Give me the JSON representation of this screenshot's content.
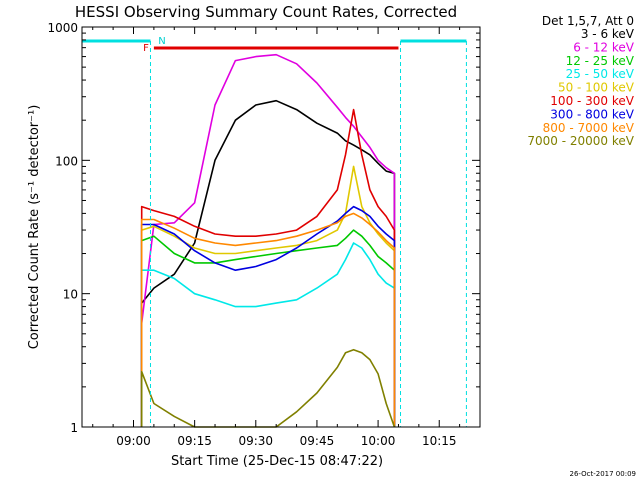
{
  "chart_data": {
    "type": "line",
    "title": "HESSI Observing Summary Count Rates, Corrected",
    "xlabel": "Start Time (25-Dec-15 08:47:22)",
    "ylabel": "Corrected Count Rate (s⁻¹ detector⁻¹)",
    "yscale": "log",
    "ylim": [
      1,
      1000
    ],
    "xlim": [
      "08:47:22",
      "10:25:00"
    ],
    "x_ticks": [
      "09:00",
      "09:15",
      "09:30",
      "09:45",
      "10:00",
      "10:15"
    ],
    "y_ticks": [
      "1",
      "10",
      "100",
      "1000"
    ],
    "legend_title": "Det 1,5,7, Att 0",
    "legend_position": "right",
    "footer_date": "26-Oct-2017 00:09",
    "flags": {
      "F": "F",
      "N": "N"
    },
    "night_intervals": [
      [
        "08:47:22",
        "09:04:10"
      ],
      [
        "10:05:30",
        "10:21:40"
      ]
    ],
    "flare_interval": [
      "09:05:00",
      "10:05:00"
    ],
    "x": [
      "09:02",
      "09:05",
      "09:10",
      "09:15",
      "09:20",
      "09:25",
      "09:30",
      "09:35",
      "09:40",
      "09:45",
      "09:50",
      "09:52",
      "09:54",
      "09:56",
      "09:58",
      "10:00",
      "10:02",
      "10:04"
    ],
    "series": [
      {
        "name": "3 - 6 keV",
        "color": "#000000",
        "values": [
          8.5,
          11,
          14,
          24,
          100,
          200,
          260,
          280,
          240,
          190,
          160,
          140,
          130,
          120,
          110,
          95,
          83,
          80
        ]
      },
      {
        "name": "6 - 12 keV",
        "color": "#e000e0",
        "values": [
          6,
          33,
          34,
          48,
          260,
          560,
          600,
          620,
          530,
          380,
          250,
          210,
          180,
          150,
          125,
          100,
          88,
          80
        ]
      },
      {
        "name": "12 - 25 keV",
        "color": "#00c800",
        "values": [
          25,
          27,
          20,
          17,
          17,
          18,
          19,
          20,
          21,
          22,
          23,
          26,
          30,
          27,
          23,
          19,
          17,
          15
        ]
      },
      {
        "name": "25 - 50 keV",
        "color": "#00e8e8",
        "values": [
          15,
          15,
          13,
          10,
          9,
          8,
          8,
          8.5,
          9,
          11,
          14,
          18,
          24,
          22,
          18,
          14,
          12,
          11
        ]
      },
      {
        "name": "50 - 100 keV",
        "color": "#e0c800",
        "values": [
          30,
          32,
          27,
          22,
          20,
          20,
          21,
          22,
          23,
          25,
          30,
          40,
          90,
          45,
          34,
          28,
          24,
          21
        ]
      },
      {
        "name": "100 - 300 keV",
        "color": "#e00000",
        "values": [
          45,
          42,
          38,
          32,
          28,
          27,
          27,
          28,
          30,
          38,
          60,
          110,
          240,
          110,
          60,
          45,
          38,
          30
        ]
      },
      {
        "name": "300 - 800 keV",
        "color": "#0000e0",
        "values": [
          33,
          33,
          28,
          21,
          17,
          15,
          16,
          18,
          22,
          28,
          35,
          40,
          45,
          42,
          38,
          32,
          28,
          25
        ]
      },
      {
        "name": "800 - 7000 keV",
        "color": "#ff8800",
        "values": [
          36,
          36,
          31,
          26,
          24,
          23,
          24,
          25,
          27,
          30,
          34,
          38,
          40,
          37,
          33,
          29,
          25,
          22
        ]
      },
      {
        "name": "7000 - 20000 keV",
        "color": "#808000",
        "values": [
          2.6,
          1.5,
          1.2,
          1,
          1,
          1,
          1,
          1,
          1.3,
          1.8,
          2.8,
          3.6,
          3.8,
          3.6,
          3.2,
          2.5,
          1.5,
          1
        ]
      }
    ]
  }
}
